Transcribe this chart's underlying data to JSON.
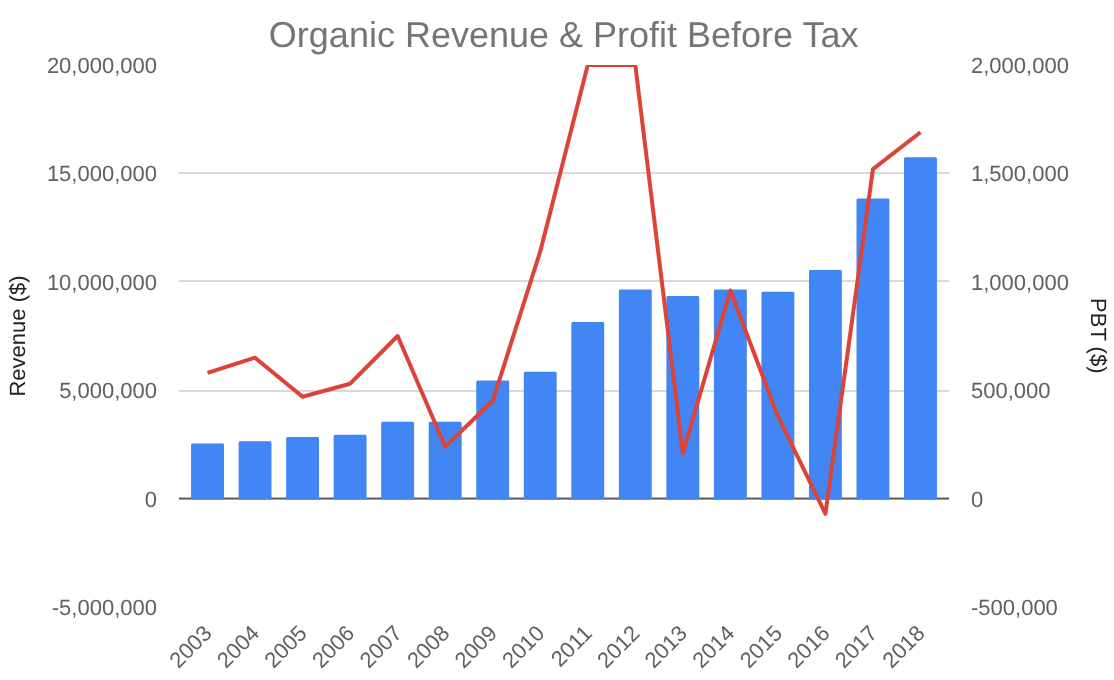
{
  "chart_data": {
    "type": "bar",
    "title": "Organic Revenue & Profit Before Tax",
    "ylabel": "Revenue ($)",
    "y2label": "PBT ($)",
    "categories": [
      "2003",
      "2004",
      "2005",
      "2006",
      "2007",
      "2008",
      "2009",
      "2010",
      "2011",
      "2012",
      "2013",
      "2014",
      "2015",
      "2016",
      "2017",
      "2018"
    ],
    "series": [
      {
        "color": "#4285f4",
        "values": [
          2500000,
          2600000,
          2800000,
          2900000,
          3500000,
          3500000,
          5400000,
          5800000,
          8100000,
          9600000,
          9300000,
          9600000,
          9500000,
          10500000,
          13800000,
          15700000
        ]
      },
      {
        "type": "line",
        "axis": "y2",
        "color": "#db4437",
        "values": [
          580000,
          650000,
          470000,
          530000,
          750000,
          240000,
          450000,
          1140000,
          2000000,
          2000000,
          210000,
          960000,
          380000,
          -70000,
          1520000,
          1690000
        ]
      }
    ],
    "ylim": [
      -5000000,
      20000000
    ],
    "yticks": [
      {
        "value": -5000000,
        "label": "-5,000,000"
      },
      {
        "value": 0,
        "label": "0"
      },
      {
        "value": 5000000,
        "label": "5,000,000"
      },
      {
        "value": 10000000,
        "label": "10,000,000"
      },
      {
        "value": 15000000,
        "label": "15,000,000"
      },
      {
        "value": 20000000,
        "label": "20,000,000"
      }
    ],
    "y2lim": [
      -500000,
      2000000
    ],
    "y2ticks": [
      {
        "value": -500000,
        "label": "-500,000"
      },
      {
        "value": 0,
        "label": "0"
      },
      {
        "value": 500000,
        "label": "500,000"
      },
      {
        "value": 1000000,
        "label": "1,000,000"
      },
      {
        "value": 1500000,
        "label": "1,500,000"
      },
      {
        "value": 2000000,
        "label": "2,000,000"
      }
    ],
    "grid": "y"
  }
}
